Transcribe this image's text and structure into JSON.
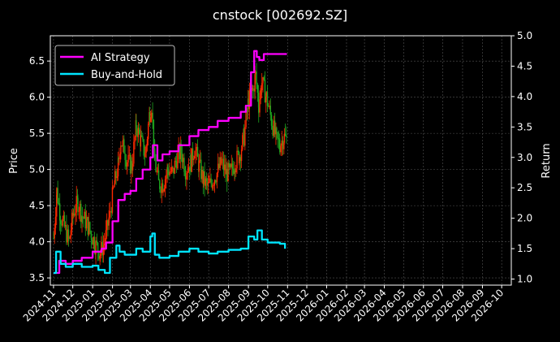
{
  "chart_data": {
    "type": "line",
    "title": "cnstock [002692.SZ]",
    "ylabel_left": "Price",
    "ylabel_right": "Return",
    "ylim_left": [
      3.4,
      6.85
    ],
    "ylim_right": [
      0.9,
      5.0
    ],
    "yticks_left": [
      "3.5",
      "4.0",
      "4.5",
      "5.0",
      "5.5",
      "6.0",
      "6.5"
    ],
    "yticks_right": [
      "1.0",
      "1.5",
      "2.0",
      "2.5",
      "3.0",
      "3.5",
      "4.0",
      "4.5",
      "5.0"
    ],
    "x_ticks": [
      "2024-11",
      "2024-12",
      "2025-01",
      "2025-02",
      "2025-03",
      "2025-04",
      "2025-05",
      "2025-06",
      "2025-07",
      "2025-08",
      "2025-09",
      "2025-10",
      "2025-11",
      "2025-12",
      "2026-01",
      "2026-02",
      "2026-03",
      "2026-04",
      "2026-05",
      "2026-06",
      "2026-07",
      "2026-08",
      "2026-09",
      "2026-10"
    ],
    "grid": true,
    "legend_position": "top-left",
    "colors": {
      "up": "#ff2a00",
      "down": "#1fa81f",
      "ai": "#ff00ff",
      "bh": "#00e5ff",
      "grid": "#555555"
    },
    "price_series": [
      [
        "2024-11-01",
        4.05
      ],
      [
        "2024-11-06",
        4.7
      ],
      [
        "2024-11-12",
        4.35
      ],
      [
        "2024-11-18",
        4.2
      ],
      [
        "2024-11-25",
        4.0
      ],
      [
        "2024-12-02",
        4.4
      ],
      [
        "2024-12-09",
        4.55
      ],
      [
        "2024-12-16",
        4.35
      ],
      [
        "2024-12-23",
        4.25
      ],
      [
        "2024-12-30",
        4.1
      ],
      [
        "2025-01-06",
        3.95
      ],
      [
        "2025-01-13",
        3.85
      ],
      [
        "2025-01-20",
        4.0
      ],
      [
        "2025-01-27",
        4.35
      ],
      [
        "2025-02-05",
        4.85
      ],
      [
        "2025-02-10",
        5.05
      ],
      [
        "2025-02-14",
        5.4
      ],
      [
        "2025-02-19",
        5.3
      ],
      [
        "2025-02-24",
        5.1
      ],
      [
        "2025-03-03",
        5.05
      ],
      [
        "2025-03-10",
        5.6
      ],
      [
        "2025-03-17",
        5.4
      ],
      [
        "2025-03-24",
        5.2
      ],
      [
        "2025-03-31",
        5.8
      ],
      [
        "2025-04-03",
        5.9
      ],
      [
        "2025-04-08",
        5.1
      ],
      [
        "2025-04-14",
        4.8
      ],
      [
        "2025-04-21",
        4.8
      ],
      [
        "2025-04-28",
        5.0
      ],
      [
        "2025-05-06",
        4.95
      ],
      [
        "2025-05-12",
        5.15
      ],
      [
        "2025-05-19",
        5.25
      ],
      [
        "2025-05-26",
        5.0
      ],
      [
        "2025-06-03",
        5.1
      ],
      [
        "2025-06-09",
        5.3
      ],
      [
        "2025-06-16",
        5.05
      ],
      [
        "2025-06-23",
        4.85
      ],
      [
        "2025-06-30",
        4.75
      ],
      [
        "2025-07-07",
        4.85
      ],
      [
        "2025-07-14",
        4.95
      ],
      [
        "2025-07-21",
        5.1
      ],
      [
        "2025-07-28",
        4.95
      ],
      [
        "2025-08-04",
        4.95
      ],
      [
        "2025-08-11",
        5.1
      ],
      [
        "2025-08-18",
        5.2
      ],
      [
        "2025-08-25",
        5.45
      ],
      [
        "2025-09-01",
        5.95
      ],
      [
        "2025-09-08",
        6.1
      ],
      [
        "2025-09-12",
        6.3
      ],
      [
        "2025-09-17",
        5.9
      ],
      [
        "2025-09-22",
        6.2
      ],
      [
        "2025-09-29",
        6.0
      ],
      [
        "2025-10-09",
        5.6
      ],
      [
        "2025-10-15",
        5.4
      ],
      [
        "2025-10-20",
        5.35
      ],
      [
        "2025-10-27",
        5.45
      ],
      [
        "2025-10-31",
        5.4
      ]
    ],
    "series": [
      {
        "name": "AI Strategy",
        "points": [
          [
            "2024-11-01",
            1.1
          ],
          [
            "2024-11-10",
            1.3
          ],
          [
            "2024-11-20",
            1.25
          ],
          [
            "2024-12-01",
            1.3
          ],
          [
            "2024-12-15",
            1.35
          ],
          [
            "2025-01-01",
            1.45
          ],
          [
            "2025-01-15",
            1.5
          ],
          [
            "2025-01-22",
            1.6
          ],
          [
            "2025-02-01",
            1.95
          ],
          [
            "2025-02-10",
            2.3
          ],
          [
            "2025-02-20",
            2.4
          ],
          [
            "2025-03-01",
            2.45
          ],
          [
            "2025-03-10",
            2.65
          ],
          [
            "2025-03-20",
            2.8
          ],
          [
            "2025-04-01",
            3.0
          ],
          [
            "2025-04-05",
            3.2
          ],
          [
            "2025-04-12",
            2.95
          ],
          [
            "2025-04-20",
            3.05
          ],
          [
            "2025-05-01",
            3.1
          ],
          [
            "2025-05-15",
            3.2
          ],
          [
            "2025-06-01",
            3.35
          ],
          [
            "2025-06-15",
            3.45
          ],
          [
            "2025-07-01",
            3.5
          ],
          [
            "2025-07-15",
            3.6
          ],
          [
            "2025-08-01",
            3.65
          ],
          [
            "2025-08-20",
            3.75
          ],
          [
            "2025-08-28",
            3.85
          ],
          [
            "2025-09-05",
            4.4
          ],
          [
            "2025-09-10",
            4.75
          ],
          [
            "2025-09-14",
            4.65
          ],
          [
            "2025-09-18",
            4.6
          ],
          [
            "2025-09-25",
            4.7
          ],
          [
            "2025-10-10",
            4.7
          ],
          [
            "2025-10-31",
            4.7
          ]
        ]
      },
      {
        "name": "Buy-and-Hold",
        "points": [
          [
            "2024-11-01",
            1.1
          ],
          [
            "2024-11-05",
            1.45
          ],
          [
            "2024-11-12",
            1.25
          ],
          [
            "2024-11-20",
            1.2
          ],
          [
            "2024-12-01",
            1.25
          ],
          [
            "2024-12-15",
            1.2
          ],
          [
            "2025-01-01",
            1.22
          ],
          [
            "2025-01-10",
            1.15
          ],
          [
            "2025-01-20",
            1.1
          ],
          [
            "2025-01-28",
            1.35
          ],
          [
            "2025-02-07",
            1.55
          ],
          [
            "2025-02-12",
            1.45
          ],
          [
            "2025-02-20",
            1.4
          ],
          [
            "2025-03-01",
            1.4
          ],
          [
            "2025-03-10",
            1.5
          ],
          [
            "2025-03-20",
            1.45
          ],
          [
            "2025-04-01",
            1.7
          ],
          [
            "2025-04-04",
            1.75
          ],
          [
            "2025-04-08",
            1.4
          ],
          [
            "2025-04-15",
            1.35
          ],
          [
            "2025-05-01",
            1.38
          ],
          [
            "2025-05-15",
            1.45
          ],
          [
            "2025-06-01",
            1.5
          ],
          [
            "2025-06-15",
            1.45
          ],
          [
            "2025-07-01",
            1.42
          ],
          [
            "2025-07-15",
            1.45
          ],
          [
            "2025-08-01",
            1.48
          ],
          [
            "2025-08-20",
            1.5
          ],
          [
            "2025-09-01",
            1.7
          ],
          [
            "2025-09-10",
            1.65
          ],
          [
            "2025-09-15",
            1.8
          ],
          [
            "2025-09-22",
            1.65
          ],
          [
            "2025-10-01",
            1.6
          ],
          [
            "2025-10-20",
            1.58
          ],
          [
            "2025-10-28",
            1.5
          ]
        ]
      }
    ]
  }
}
